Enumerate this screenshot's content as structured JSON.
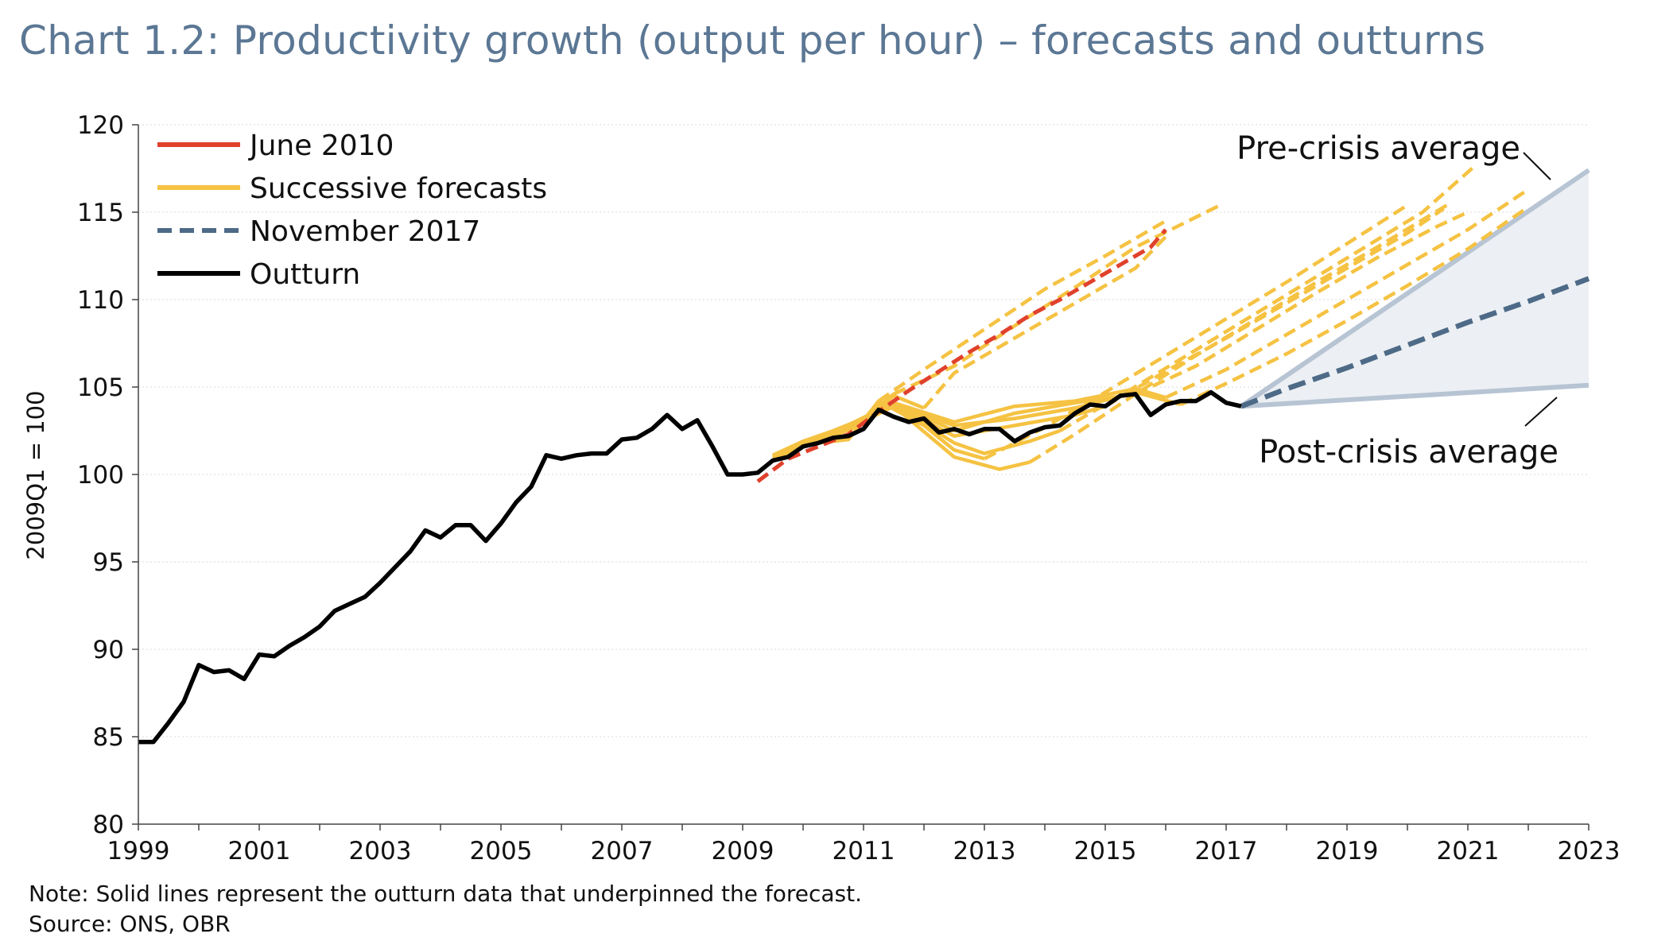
{
  "title": "Chart 1.2: Productivity growth (output per hour) – forecasts and outturns",
  "note": "Note: Solid lines represent the outturn data that underpinned the forecast.",
  "source": "Source: ONS, OBR",
  "chart_data": {
    "type": "line",
    "ylabel": "2009Q1 = 100",
    "xlabel": "",
    "xlim": [
      1999,
      2023
    ],
    "ylim": [
      80,
      120
    ],
    "x_ticks": [
      "1999",
      "2001",
      "2003",
      "2005",
      "2007",
      "2009",
      "2011",
      "2013",
      "2015",
      "2017",
      "2019",
      "2021",
      "2023"
    ],
    "y_ticks": [
      "80",
      "85",
      "90",
      "95",
      "100",
      "105",
      "110",
      "115",
      "120"
    ],
    "grid": "horizontal",
    "legend_position": "top-left",
    "legend": [
      {
        "label": "June 2010",
        "color": "#e0412c",
        "style": "solid"
      },
      {
        "label": "Successive forecasts",
        "color": "#f5c242",
        "style": "solid"
      },
      {
        "label": "November 2017",
        "color": "#4d6a87",
        "style": "dashed"
      },
      {
        "label": "Outturn",
        "color": "#000000",
        "style": "solid"
      }
    ],
    "annotations": [
      "Pre-crisis average",
      "Post-crisis average"
    ],
    "colors": {
      "outturn": "#000000",
      "june2010": "#e0412c",
      "successive": "#f5c242",
      "nov2017": "#4d6a87",
      "band_line": "#b7c4d3",
      "band_fill": "#eceff3",
      "grid": "#d9d9d9"
    },
    "series": [
      {
        "name": "Outturn",
        "color": "#000000",
        "style": "solid",
        "points": [
          [
            1999.0,
            84.7
          ],
          [
            1999.25,
            84.7
          ],
          [
            1999.5,
            85.8
          ],
          [
            1999.75,
            87.0
          ],
          [
            2000.0,
            89.1
          ],
          [
            2000.25,
            88.7
          ],
          [
            2000.5,
            88.8
          ],
          [
            2000.75,
            88.3
          ],
          [
            2001.0,
            89.7
          ],
          [
            2001.25,
            89.6
          ],
          [
            2001.5,
            90.2
          ],
          [
            2001.75,
            90.7
          ],
          [
            2002.0,
            91.3
          ],
          [
            2002.25,
            92.2
          ],
          [
            2002.5,
            92.6
          ],
          [
            2002.75,
            93.0
          ],
          [
            2003.0,
            93.8
          ],
          [
            2003.25,
            94.7
          ],
          [
            2003.5,
            95.6
          ],
          [
            2003.75,
            96.8
          ],
          [
            2004.0,
            96.4
          ],
          [
            2004.25,
            97.1
          ],
          [
            2004.5,
            97.1
          ],
          [
            2004.75,
            96.2
          ],
          [
            2005.0,
            97.2
          ],
          [
            2005.25,
            98.4
          ],
          [
            2005.5,
            99.3
          ],
          [
            2005.75,
            101.1
          ],
          [
            2006.0,
            100.9
          ],
          [
            2006.25,
            101.1
          ],
          [
            2006.5,
            101.2
          ],
          [
            2006.75,
            101.2
          ],
          [
            2007.0,
            102.0
          ],
          [
            2007.25,
            102.1
          ],
          [
            2007.5,
            102.6
          ],
          [
            2007.75,
            103.4
          ],
          [
            2008.0,
            102.6
          ],
          [
            2008.25,
            103.1
          ],
          [
            2008.5,
            101.6
          ],
          [
            2008.75,
            100.0
          ],
          [
            2009.0,
            100.0
          ],
          [
            2009.25,
            100.1
          ],
          [
            2009.5,
            100.8
          ],
          [
            2009.75,
            101.0
          ],
          [
            2010.0,
            101.6
          ],
          [
            2010.25,
            101.8
          ],
          [
            2010.5,
            102.1
          ],
          [
            2010.75,
            102.2
          ],
          [
            2011.0,
            102.6
          ],
          [
            2011.25,
            103.7
          ],
          [
            2011.5,
            103.3
          ],
          [
            2011.75,
            103.0
          ],
          [
            2012.0,
            103.2
          ],
          [
            2012.25,
            102.4
          ],
          [
            2012.5,
            102.6
          ],
          [
            2012.75,
            102.3
          ],
          [
            2013.0,
            102.6
          ],
          [
            2013.25,
            102.6
          ],
          [
            2013.5,
            101.9
          ],
          [
            2013.75,
            102.4
          ],
          [
            2014.0,
            102.7
          ],
          [
            2014.25,
            102.8
          ],
          [
            2014.5,
            103.5
          ],
          [
            2014.75,
            104.0
          ],
          [
            2015.0,
            103.9
          ],
          [
            2015.25,
            104.5
          ],
          [
            2015.5,
            104.6
          ],
          [
            2015.75,
            103.4
          ],
          [
            2016.0,
            104.0
          ],
          [
            2016.25,
            104.2
          ],
          [
            2016.5,
            104.2
          ],
          [
            2016.75,
            104.7
          ],
          [
            2017.0,
            104.1
          ],
          [
            2017.25,
            103.9
          ]
        ]
      },
      {
        "name": "June 2010",
        "color": "#e0412c",
        "style": "dashed",
        "points": [
          [
            2009.25,
            99.6
          ],
          [
            2009.75,
            100.9
          ],
          [
            2010.25,
            101.6
          ],
          [
            2010.75,
            102.3
          ],
          [
            2011.25,
            103.6
          ],
          [
            2011.75,
            104.8
          ],
          [
            2012.25,
            105.9
          ],
          [
            2012.75,
            107.0
          ],
          [
            2013.25,
            108.0
          ],
          [
            2013.75,
            109.1
          ],
          [
            2014.25,
            110.0
          ],
          [
            2014.75,
            111.0
          ],
          [
            2015.25,
            112.0
          ],
          [
            2015.75,
            113.0
          ],
          [
            2016.0,
            114.0
          ]
        ]
      },
      {
        "name": "November 2017",
        "color": "#4d6a87",
        "style": "dashed",
        "points": [
          [
            2017.25,
            103.9
          ],
          [
            2018.0,
            104.9
          ],
          [
            2019.0,
            106.1
          ],
          [
            2020.0,
            107.4
          ],
          [
            2021.0,
            108.7
          ],
          [
            2022.0,
            109.9
          ],
          [
            2023.0,
            111.2
          ]
        ]
      },
      {
        "name": "Pre-crisis average",
        "color": "#b7c4d3",
        "style": "solid",
        "points": [
          [
            2017.25,
            103.9
          ],
          [
            2023.0,
            117.4
          ]
        ]
      },
      {
        "name": "Post-crisis average",
        "color": "#b7c4d3",
        "style": "solid",
        "points": [
          [
            2017.25,
            103.9
          ],
          [
            2023.0,
            105.1
          ]
        ]
      }
    ],
    "successive_forecasts": [
      {
        "solid": [
          [
            2009.5,
            100.8
          ],
          [
            2010.0,
            101.6
          ],
          [
            2010.5,
            102.2
          ],
          [
            2011.0,
            102.9
          ],
          [
            2011.25,
            104.2
          ]
        ],
        "dashed": [
          [
            2011.25,
            104.2
          ],
          [
            2012.0,
            106.0
          ],
          [
            2013.0,
            108.3
          ],
          [
            2014.0,
            110.6
          ],
          [
            2015.0,
            112.5
          ],
          [
            2016.0,
            114.5
          ]
        ]
      },
      {
        "solid": [
          [
            2009.5,
            101.1
          ],
          [
            2010.0,
            101.9
          ],
          [
            2010.5,
            102.5
          ],
          [
            2011.0,
            103.2
          ],
          [
            2011.5,
            104.6
          ]
        ],
        "dashed": [
          [
            2011.5,
            104.6
          ],
          [
            2012.5,
            106.2
          ],
          [
            2013.5,
            108.5
          ],
          [
            2014.5,
            110.7
          ],
          [
            2015.5,
            113.0
          ],
          [
            2016.9,
            115.4
          ]
        ]
      },
      {
        "solid": [
          [
            2009.5,
            101.0
          ],
          [
            2010.0,
            101.8
          ],
          [
            2010.5,
            102.4
          ],
          [
            2011.0,
            103.1
          ],
          [
            2011.5,
            104.5
          ],
          [
            2012.0,
            103.8
          ]
        ],
        "dashed": [
          [
            2012.0,
            103.8
          ],
          [
            2012.5,
            105.8
          ],
          [
            2013.5,
            107.8
          ],
          [
            2014.5,
            109.8
          ],
          [
            2015.5,
            111.8
          ],
          [
            2016.0,
            113.6
          ]
        ]
      },
      {
        "solid": [
          [
            2009.5,
            100.9
          ],
          [
            2010.0,
            101.7
          ],
          [
            2010.75,
            102.0
          ],
          [
            2011.25,
            104.2
          ],
          [
            2012.0,
            102.8
          ],
          [
            2012.5,
            101.4
          ],
          [
            2013.0,
            100.9
          ]
        ],
        "dashed": [
          [
            2013.0,
            100.9
          ],
          [
            2014.0,
            102.7
          ],
          [
            2015.0,
            104.7
          ],
          [
            2016.0,
            106.8
          ],
          [
            2017.0,
            108.9
          ],
          [
            2018.0,
            111.0
          ],
          [
            2019.0,
            113.2
          ],
          [
            2020.0,
            115.4
          ]
        ]
      },
      {
        "solid": [
          [
            2009.5,
            101.0
          ],
          [
            2010.5,
            102.2
          ],
          [
            2011.5,
            103.9
          ],
          [
            2012.5,
            101.0
          ],
          [
            2013.25,
            100.3
          ],
          [
            2013.75,
            100.7
          ]
        ],
        "dashed": [
          [
            2013.75,
            100.7
          ],
          [
            2014.5,
            102.3
          ],
          [
            2015.5,
            104.6
          ],
          [
            2016.5,
            106.8
          ],
          [
            2017.5,
            108.9
          ],
          [
            2018.5,
            111.0
          ],
          [
            2019.5,
            113.0
          ],
          [
            2020.7,
            115.5
          ]
        ]
      },
      {
        "solid": [
          [
            2009.5,
            101.0
          ],
          [
            2010.5,
            102.3
          ],
          [
            2011.5,
            104.0
          ],
          [
            2012.5,
            101.8
          ],
          [
            2013.0,
            101.2
          ],
          [
            2013.75,
            101.9
          ],
          [
            2014.25,
            102.5
          ]
        ],
        "dashed": [
          [
            2014.25,
            102.5
          ],
          [
            2015.25,
            104.5
          ],
          [
            2016.25,
            106.6
          ],
          [
            2017.25,
            108.7
          ],
          [
            2018.25,
            110.8
          ],
          [
            2019.25,
            112.9
          ],
          [
            2020.25,
            115.0
          ],
          [
            2021.1,
            117.6
          ]
        ]
      },
      {
        "solid": [
          [
            2009.5,
            101.1
          ],
          [
            2010.5,
            102.4
          ],
          [
            2011.5,
            104.0
          ],
          [
            2012.5,
            102.2
          ],
          [
            2013.5,
            102.8
          ],
          [
            2014.5,
            103.4
          ],
          [
            2015.0,
            103.9
          ]
        ],
        "dashed": [
          [
            2015.0,
            103.9
          ],
          [
            2016.0,
            105.9
          ],
          [
            2017.0,
            107.8
          ],
          [
            2018.0,
            109.8
          ],
          [
            2019.0,
            111.8
          ],
          [
            2020.0,
            113.8
          ],
          [
            2020.6,
            115.2
          ]
        ]
      },
      {
        "solid": [
          [
            2009.5,
            101.1
          ],
          [
            2010.5,
            102.4
          ],
          [
            2011.5,
            104.1
          ],
          [
            2012.5,
            102.5
          ],
          [
            2013.5,
            103.5
          ],
          [
            2014.5,
            104.1
          ],
          [
            2015.5,
            104.6
          ]
        ],
        "dashed": [
          [
            2015.5,
            104.6
          ],
          [
            2016.5,
            106.2
          ],
          [
            2017.5,
            108.3
          ],
          [
            2018.5,
            110.4
          ],
          [
            2019.5,
            112.4
          ],
          [
            2020.5,
            114.2
          ],
          [
            2021.0,
            115.0
          ]
        ]
      },
      {
        "solid": [
          [
            2009.5,
            101.1
          ],
          [
            2010.5,
            102.4
          ],
          [
            2011.5,
            104.1
          ],
          [
            2012.5,
            103.0
          ],
          [
            2013.5,
            103.9
          ],
          [
            2014.5,
            104.2
          ],
          [
            2015.5,
            104.9
          ],
          [
            2016.0,
            104.4
          ]
        ],
        "dashed": [
          [
            2016.0,
            104.4
          ],
          [
            2017.0,
            106.0
          ],
          [
            2018.0,
            108.0
          ],
          [
            2019.0,
            110.0
          ],
          [
            2020.0,
            112.0
          ],
          [
            2021.0,
            114.0
          ],
          [
            2022.0,
            116.3
          ]
        ]
      },
      {
        "solid": [
          [
            2009.5,
            101.1
          ],
          [
            2010.5,
            102.4
          ],
          [
            2011.5,
            104.0
          ],
          [
            2012.5,
            102.8
          ],
          [
            2013.5,
            103.2
          ],
          [
            2014.5,
            103.8
          ],
          [
            2015.5,
            104.7
          ],
          [
            2016.25,
            104.0
          ]
        ],
        "dashed": [
          [
            2016.25,
            104.0
          ],
          [
            2017.0,
            105.2
          ],
          [
            2018.0,
            106.9
          ],
          [
            2019.0,
            108.8
          ],
          [
            2020.0,
            110.8
          ],
          [
            2021.0,
            112.9
          ],
          [
            2022.0,
            115.3
          ]
        ]
      }
    ]
  }
}
